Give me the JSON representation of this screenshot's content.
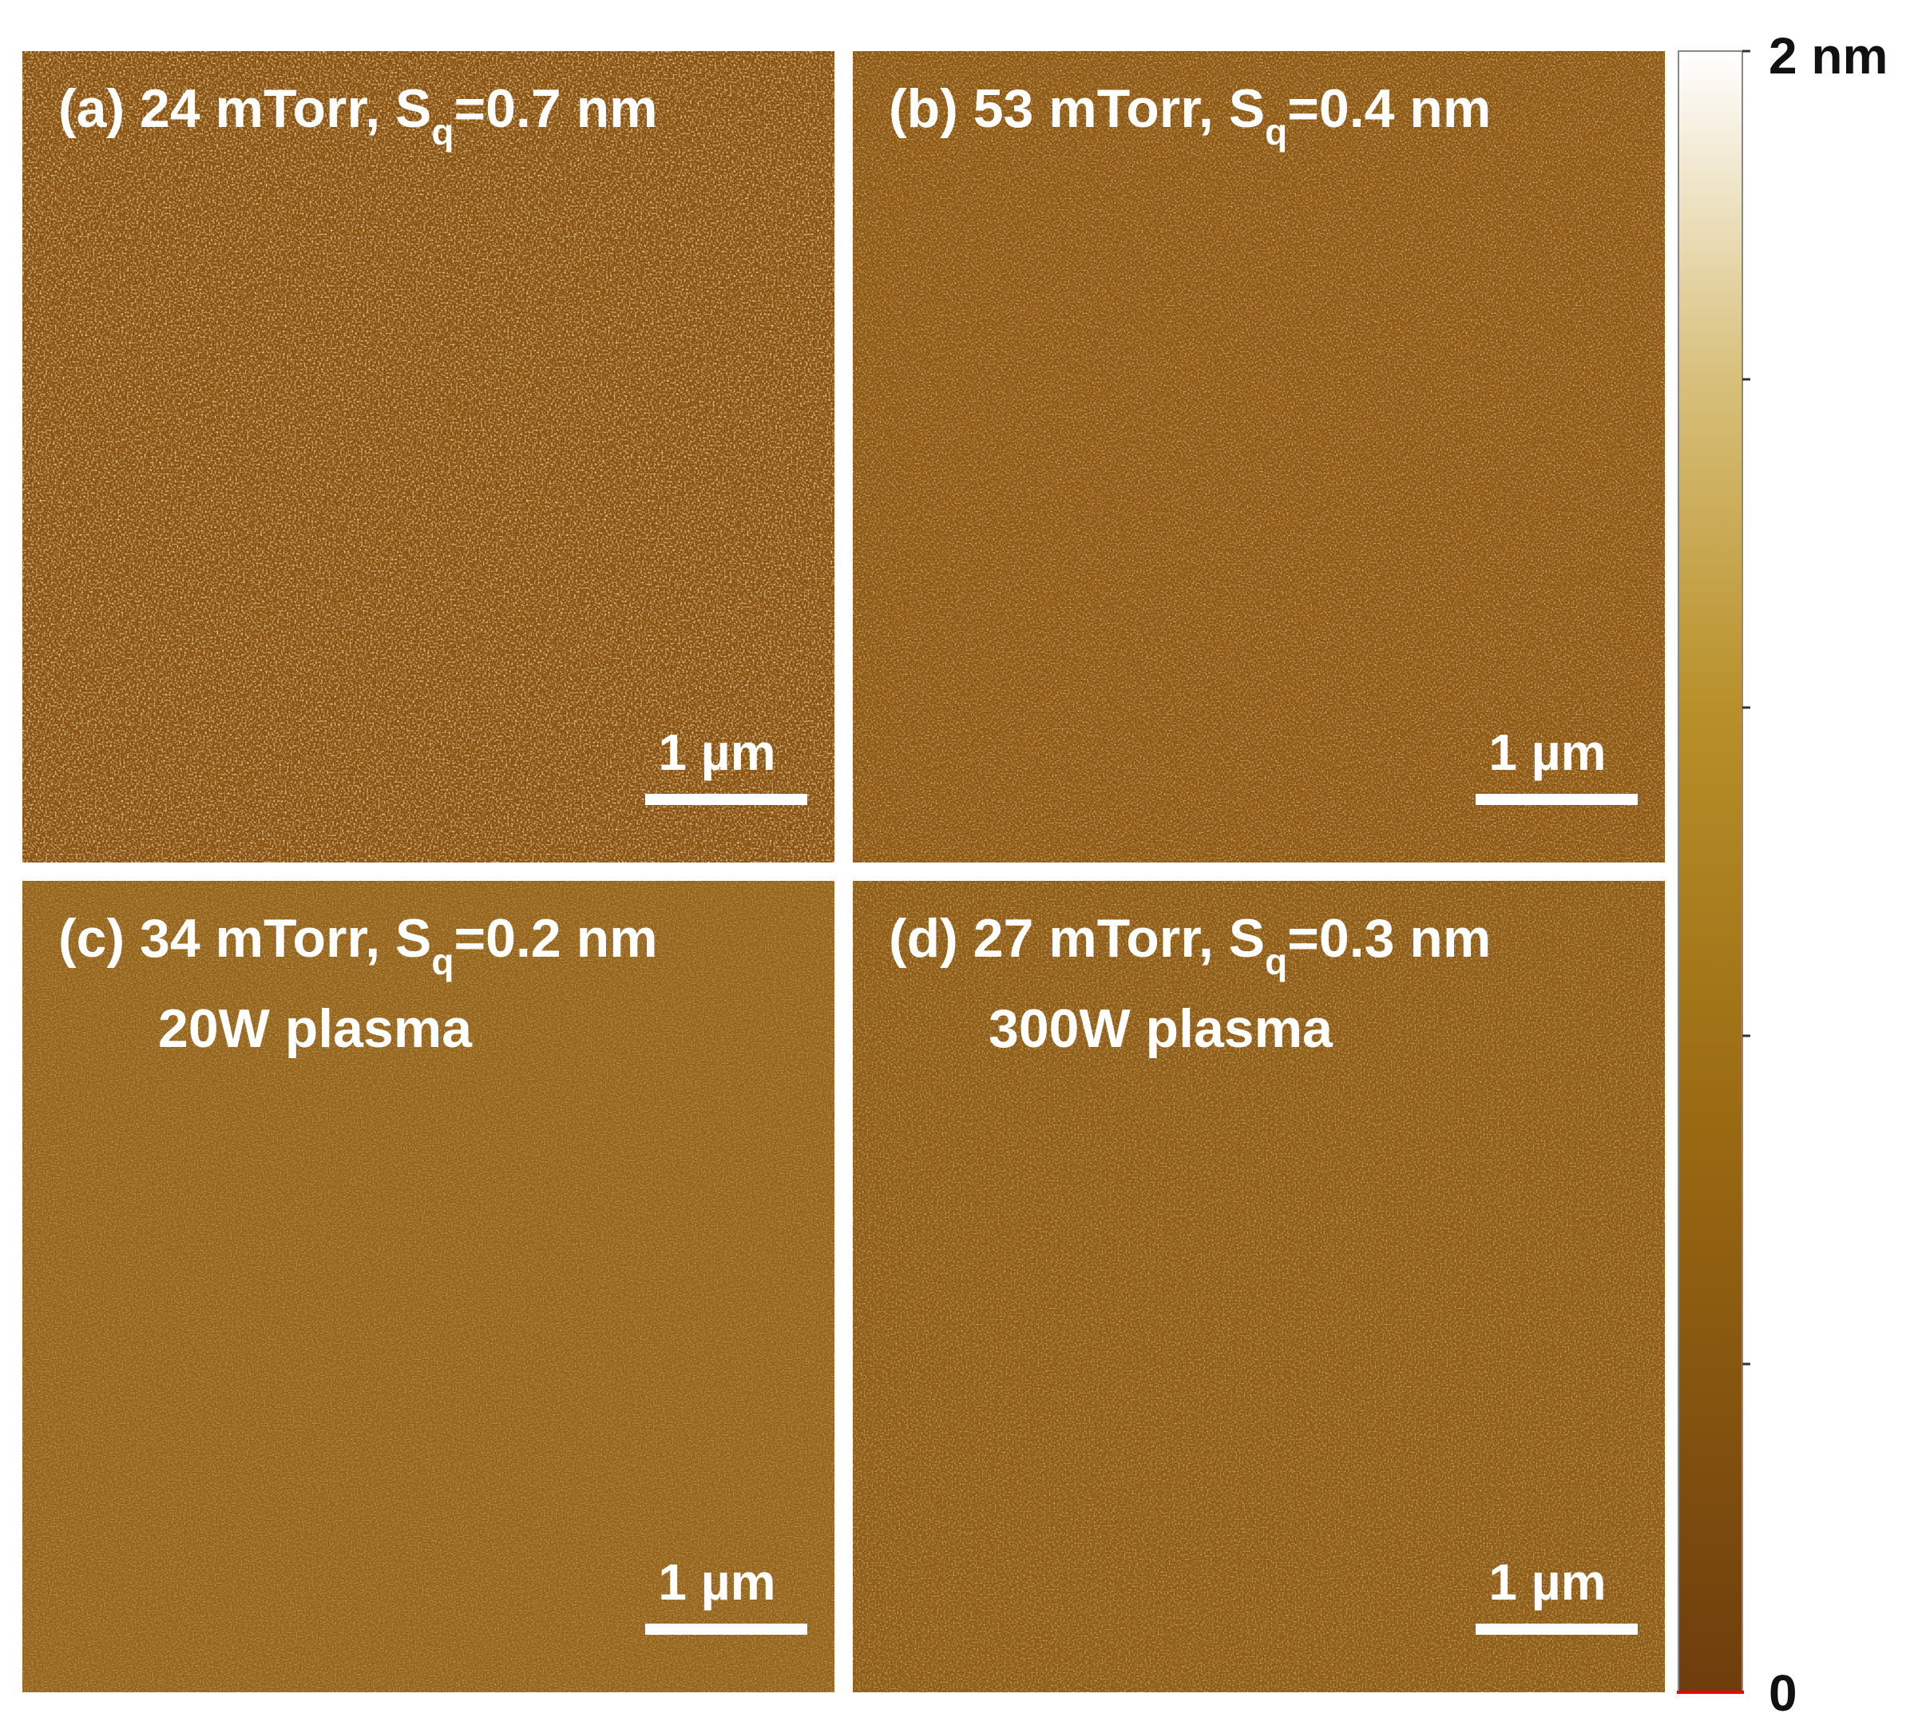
{
  "colorbar": {
    "max_label": "2 nm",
    "min_label": "0"
  },
  "panels": [
    {
      "label_prefix": "(a) 24 mTorr, S",
      "label_sub": "q",
      "label_suffix": "=0.7 nm",
      "scale_bar": "1 µm"
    },
    {
      "label_prefix": "(b) 53 mTorr, S",
      "label_sub": "q",
      "label_suffix": "=0.4 nm",
      "scale_bar": "1 µm"
    },
    {
      "label_prefix": "(c) 34 mTorr, S",
      "label_sub": "q",
      "label_suffix": "=0.2 nm",
      "subtitle": "20W plasma",
      "scale_bar": "1 µm"
    },
    {
      "label_prefix": "(d) 27 mTorr, S",
      "label_sub": "q",
      "label_suffix": "=0.3 nm",
      "subtitle": "300W plasma",
      "scale_bar": "1 µm"
    }
  ]
}
